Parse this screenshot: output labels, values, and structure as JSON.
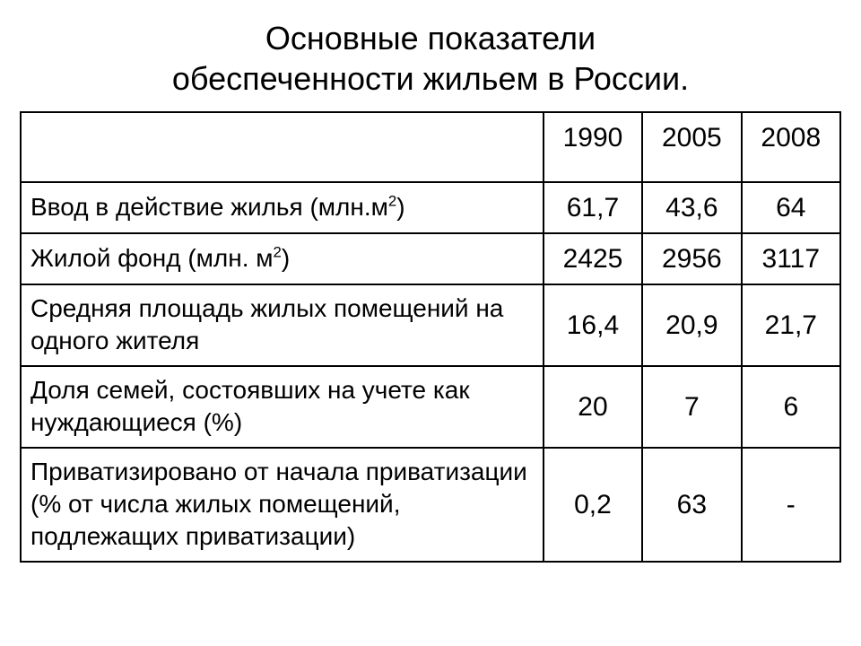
{
  "title_line1": "Основные показатели",
  "title_line2": "обеспеченности жильем в России.",
  "table": {
    "type": "table",
    "columns": [
      "",
      "1990",
      "2005",
      "2008"
    ],
    "rows": [
      {
        "label_pre": "Ввод в действие жилья (млн.м",
        "label_sup": "2",
        "label_post": ")",
        "values": [
          "61,7",
          "43,6",
          "64"
        ]
      },
      {
        "label_pre": "Жилой фонд (млн. м",
        "label_sup": "2",
        "label_post": ")",
        "values": [
          "2425",
          "2956",
          "3117"
        ]
      },
      {
        "label_pre": "Средняя площадь жилых помещений на одного жителя",
        "label_sup": "",
        "label_post": "",
        "values": [
          "16,4",
          "20,9",
          "21,7"
        ]
      },
      {
        "label_pre": "Доля семей, состоявших на учете как нуждающиеся (%)",
        "label_sup": "",
        "label_post": "",
        "values": [
          "20",
          "7",
          "6"
        ]
      },
      {
        "label_pre": "Приватизировано от начала приватизации (% от числа жилых помещений, подлежащих приватизации)",
        "label_sup": "",
        "label_post": "",
        "values": [
          "0,2",
          "63",
          "-"
        ]
      }
    ],
    "border_color": "#000000",
    "background_color": "#ffffff",
    "text_color": "#000000",
    "title_fontsize": 36,
    "cell_fontsize": 28,
    "value_fontsize": 30
  }
}
